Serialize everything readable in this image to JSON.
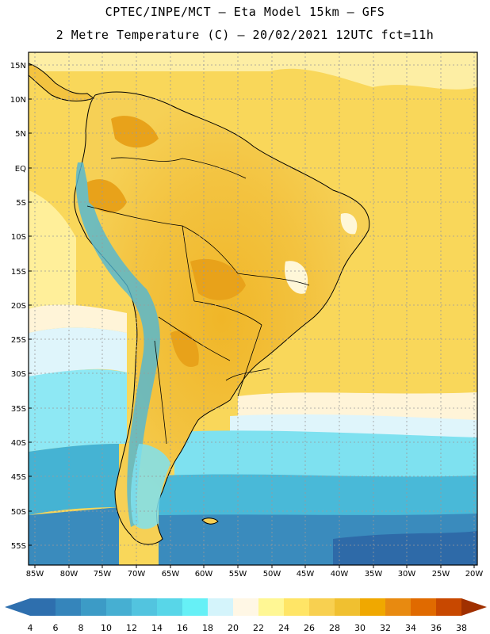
{
  "header": {
    "line1": "CPTEC/INPE/MCT –  Eta Model 15km – GFS",
    "line2": "2 Metre Temperature (C) – 20/02/2021 12UTC fct=11h"
  },
  "axes": {
    "lat_labels": [
      "15N",
      "10N",
      "5N",
      "EQ",
      "5S",
      "10S",
      "15S",
      "20S",
      "25S",
      "30S",
      "35S",
      "40S",
      "45S",
      "50S",
      "55S"
    ],
    "lon_labels": [
      "85W",
      "80W",
      "75W",
      "70W",
      "65W",
      "60W",
      "55W",
      "50W",
      "45W",
      "40W",
      "35W",
      "30W",
      "25W",
      "20W"
    ]
  },
  "colorbar": {
    "labels": [
      "4",
      "6",
      "8",
      "10",
      "12",
      "14",
      "16",
      "18",
      "20",
      "22",
      "24",
      "26",
      "28",
      "30",
      "32",
      "34",
      "36",
      "38"
    ],
    "colors": [
      "#2e6fae",
      "#3585bb",
      "#3c9bc6",
      "#46afd2",
      "#52c4df",
      "#58d6e8",
      "#66f0f6",
      "#d4f4fb",
      "#fff7e5",
      "#fff794",
      "#ffe566",
      "#f8d050",
      "#f0c030",
      "#f0a800",
      "#e88a10",
      "#e06a00",
      "#c84800",
      "#b43a10",
      "#a03000"
    ]
  }
}
